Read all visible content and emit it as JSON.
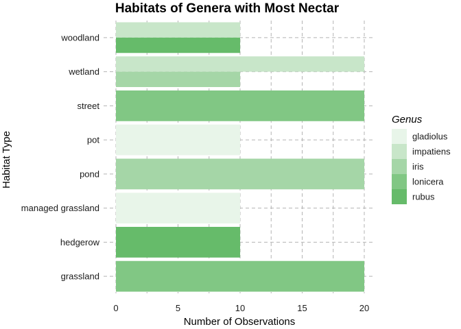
{
  "chart_data": {
    "type": "bar",
    "orientation": "horizontal",
    "stacking": "dodge",
    "title": "Habitats of Genera with Most Nectar",
    "xlabel": "Number of Observations",
    "ylabel": "Habitat Type",
    "xlim": [
      0,
      21
    ],
    "xticks": [
      0,
      5,
      10,
      15,
      20
    ],
    "grid": true,
    "legend": {
      "title": "Genus",
      "position": "right"
    },
    "categories": [
      "woodland",
      "wetland",
      "street",
      "pot",
      "pond",
      "managed grassland",
      "hedgerow",
      "grassland"
    ],
    "series": [
      {
        "name": "gladiolus",
        "color": "#e8f5e9",
        "values": [
          null,
          null,
          null,
          10,
          null,
          10,
          null,
          null
        ]
      },
      {
        "name": "impatiens",
        "color": "#c8e6c9",
        "values": [
          10,
          20,
          null,
          null,
          null,
          null,
          null,
          null
        ]
      },
      {
        "name": "iris",
        "color": "#a5d6a7",
        "values": [
          null,
          10,
          null,
          null,
          20,
          null,
          null,
          null
        ]
      },
      {
        "name": "lonicera",
        "color": "#81c784",
        "values": [
          null,
          null,
          20,
          null,
          null,
          null,
          null,
          20
        ]
      },
      {
        "name": "rubus",
        "color": "#66bb6a",
        "values": [
          10,
          null,
          null,
          null,
          null,
          null,
          10,
          null
        ]
      }
    ]
  }
}
